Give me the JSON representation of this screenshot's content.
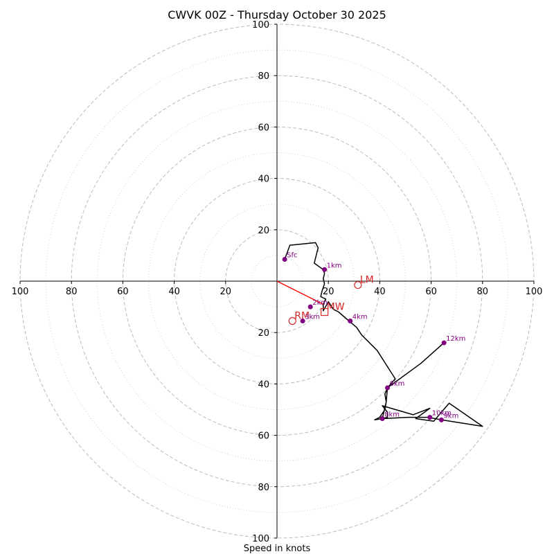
{
  "chart_data": {
    "type": "hodograph",
    "title": "CWVK 00Z - Thursday October 30 2025",
    "xlabel": "Speed in knots",
    "units": "knots",
    "xlim": [
      -100,
      100
    ],
    "ylim": [
      -100,
      100
    ],
    "ring_major": [
      20,
      40,
      60,
      80,
      100
    ],
    "ring_minor": [
      10,
      30,
      50,
      70,
      90
    ],
    "x_tick_labels": [
      "100",
      "80",
      "60",
      "40",
      "20",
      "20",
      "40",
      "60",
      "80",
      "100"
    ],
    "x_tick_values": [
      -100,
      -80,
      -60,
      -40,
      -20,
      20,
      40,
      60,
      80,
      100
    ],
    "y_tick_labels": [
      "100",
      "80",
      "60",
      "40",
      "20",
      "20",
      "40",
      "60",
      "80",
      "100"
    ],
    "y_tick_values": [
      100,
      80,
      60,
      40,
      20,
      -20,
      -40,
      -60,
      -80,
      -100
    ],
    "colors": {
      "trace": "#000000",
      "points": "#800080",
      "motion": "#d62728",
      "shear": "#ff0000",
      "grid": "#bbbbbb"
    },
    "trace": [
      [
        3,
        8.5
      ],
      [
        5,
        14
      ],
      [
        15,
        15
      ],
      [
        16,
        13
      ],
      [
        14.5,
        7
      ],
      [
        18,
        4.5
      ],
      [
        18.5,
        3
      ],
      [
        18,
        1
      ],
      [
        18.5,
        -1
      ],
      [
        17.5,
        -4
      ],
      [
        17,
        -6
      ],
      [
        19,
        -7
      ],
      [
        18,
        -9
      ],
      [
        18,
        -11.5
      ],
      [
        20,
        -8
      ],
      [
        22,
        -11
      ],
      [
        24,
        -12
      ],
      [
        28,
        -15.5
      ],
      [
        31,
        -18
      ],
      [
        33,
        -21
      ],
      [
        35,
        -23
      ],
      [
        39,
        -27
      ],
      [
        46,
        -38
      ],
      [
        43,
        -41.5
      ],
      [
        42,
        -44
      ],
      [
        42.5,
        -47
      ],
      [
        42,
        -50
      ],
      [
        40,
        -53
      ],
      [
        38,
        -54
      ],
      [
        41,
        -53.5
      ],
      [
        51,
        -53
      ],
      [
        59,
        -53
      ],
      [
        64,
        -54
      ],
      [
        80,
        -56.5
      ],
      [
        67,
        -47.5
      ],
      [
        61,
        -54.5
      ],
      [
        54,
        -53.5
      ],
      [
        59.5,
        -49.5
      ],
      [
        53,
        -52
      ],
      [
        41,
        -48.5
      ],
      [
        43,
        -51
      ],
      [
        43,
        -53
      ],
      [
        41,
        -53.5
      ],
      [
        42.5,
        -47
      ],
      [
        43,
        -41.5
      ],
      [
        56,
        -32
      ],
      [
        65,
        -24
      ]
    ],
    "height_points": [
      {
        "label": "Sfc",
        "u": 3,
        "v": 8.5
      },
      {
        "label": "1km",
        "u": 18.5,
        "v": 4.5
      },
      {
        "label": "2km",
        "u": 13,
        "v": -10
      },
      {
        "label": "3km",
        "u": 10,
        "v": -15.5
      },
      {
        "label": "4km",
        "u": 28.5,
        "v": -15.5
      },
      {
        "label": "6km",
        "u": 43,
        "v": -41.5
      },
      {
        "label": "8km",
        "u": 41,
        "v": -53.5
      },
      {
        "label": "9km",
        "u": 64,
        "v": -54
      },
      {
        "label": "10km",
        "u": 59.5,
        "v": -53
      },
      {
        "label": "12km",
        "u": 65,
        "v": -24
      }
    ],
    "storm_motion": [
      {
        "label": "LM",
        "u": 31.5,
        "v": -1.5,
        "marker": "circle"
      },
      {
        "label": "MW",
        "u": 18.5,
        "v": -12,
        "marker": "square"
      },
      {
        "label": "RM",
        "u": 6,
        "v": -15.5,
        "marker": "circle"
      }
    ],
    "shear_vector": {
      "from": [
        0,
        0
      ],
      "to": [
        18,
        -9
      ]
    }
  }
}
